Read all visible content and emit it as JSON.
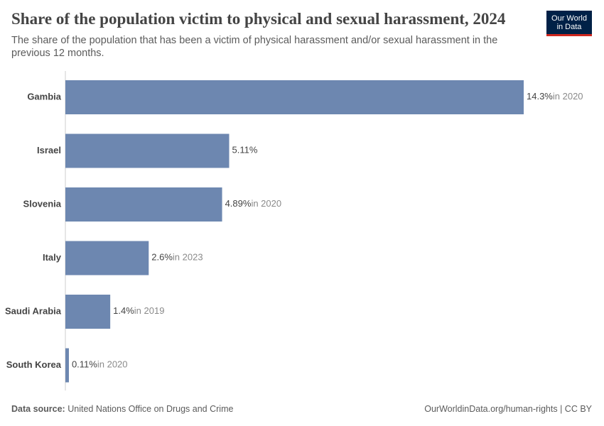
{
  "chart_data": {
    "type": "bar",
    "orientation": "horizontal",
    "title": "Share of the population victim to physical and sexual harassment, 2024",
    "subtitle": "The share of the population that has been a victim of physical harassment and/or sexual harassment in the previous 12 months.",
    "categories": [
      "Gambia",
      "Israel",
      "Slovenia",
      "Italy",
      "Saudi Arabia",
      "South Korea"
    ],
    "values": [
      14.3,
      5.11,
      4.89,
      2.6,
      1.4,
      0.11
    ],
    "value_labels": [
      "14.3%",
      "5.11%",
      "4.89%",
      "2.6%",
      "1.4%",
      "0.11%"
    ],
    "notes": [
      "in 2020",
      null,
      "in 2020",
      "in 2023",
      "in 2019",
      "in 2020"
    ],
    "color": "#6d87b0",
    "source_label": "Data source:",
    "source": "United Nations Office on Drugs and Crime",
    "footer_right": "OurWorldinData.org/human-rights | CC BY",
    "logo": [
      "Our World",
      "in Data"
    ]
  }
}
